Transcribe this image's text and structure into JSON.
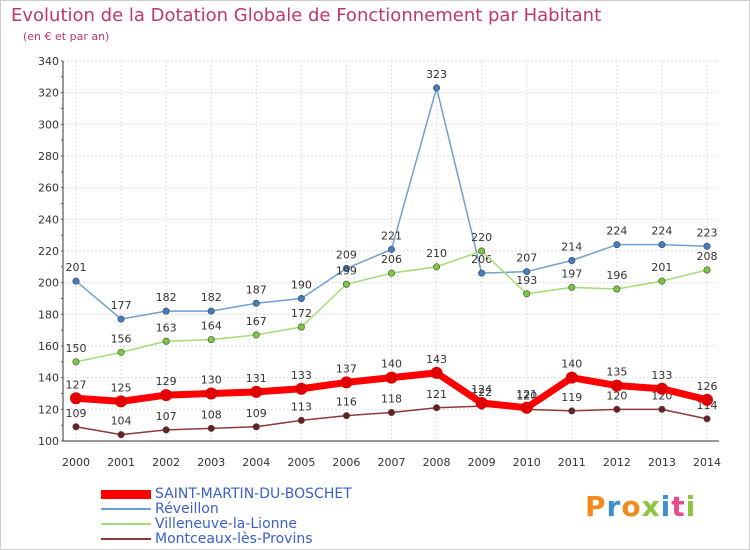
{
  "header": {
    "title": "Evolution de la Dotation Globale de Fonctionnement par Habitant",
    "subtitle": "(en € et par an)"
  },
  "logo": {
    "text": "Proxiti",
    "colors": [
      "#f28b1e",
      "#3d8fd1",
      "#f28b1e",
      "#8cc63f",
      "#3d8fd1",
      "#e94b8a",
      "#8cc63f"
    ]
  },
  "chart_data": {
    "type": "line",
    "title": "Evolution de la Dotation Globale de Fonctionnement par Habitant",
    "subtitle": "(en € et par an)",
    "xlabel": "",
    "ylabel": "",
    "ylim": [
      100,
      340
    ],
    "yticks": [
      "100",
      "120",
      "140",
      "160",
      "180",
      "200",
      "220",
      "240",
      "260",
      "280",
      "300",
      "320",
      "340"
    ],
    "grid": true,
    "legend_position": "bottom-left",
    "categories": [
      "2000",
      "2001",
      "2002",
      "2003",
      "2004",
      "2005",
      "2006",
      "2007",
      "2008",
      "2009",
      "2010",
      "2011",
      "2012",
      "2013",
      "2014"
    ],
    "series": [
      {
        "name": "Réveillon",
        "color": "#6f9fd2",
        "point_color": "#3f7fc3",
        "values": [
          201,
          177,
          182,
          182,
          187,
          190,
          209,
          221,
          323,
          206,
          207,
          214,
          224,
          224,
          223
        ],
        "labels": [
          "201",
          "177",
          "182",
          "182",
          "187",
          "190",
          "209",
          "221",
          "323",
          "206",
          "207",
          "214",
          "224",
          "224",
          "223"
        ]
      },
      {
        "name": "Villeneuve-la-Lionne",
        "color": "#a3db74",
        "point_color": "#7dc93e",
        "values": [
          150,
          156,
          163,
          164,
          167,
          172,
          199,
          206,
          210,
          220,
          193,
          197,
          196,
          201,
          208
        ],
        "labels": [
          "150",
          "156",
          "163",
          "164",
          "167",
          "172",
          "199",
          "206",
          "210",
          "220",
          "193",
          "197",
          "196",
          "201",
          "208"
        ]
      },
      {
        "name": "Montceaux-lès-Provins",
        "color": "#8c3a3a",
        "point_color": "#6b1f1f",
        "values": [
          109,
          104,
          107,
          108,
          109,
          113,
          116,
          118,
          121,
          122,
          120,
          119,
          120,
          120,
          114
        ],
        "labels": [
          "109",
          "104",
          "107",
          "108",
          "109",
          "113",
          "116",
          "118",
          "121",
          "122",
          "120",
          "119",
          "120",
          "120",
          "114"
        ]
      },
      {
        "name": "SAINT-MARTIN-DU-BOSCHET",
        "color": "#ff0000",
        "point_color": "#e00000",
        "values": [
          127,
          125,
          129,
          130,
          131,
          133,
          137,
          140,
          143,
          124,
          121,
          140,
          135,
          133,
          126
        ],
        "labels": [
          "127",
          "125",
          "129",
          "130",
          "131",
          "133",
          "137",
          "140",
          "143",
          "124",
          "121",
          "140",
          "135",
          "133",
          "126"
        ]
      }
    ],
    "legend": [
      {
        "name": "SAINT-MARTIN-DU-BOSCHET",
        "color": "#ff0000"
      },
      {
        "name": "Réveillon",
        "color": "#6f9fd2"
      },
      {
        "name": "Villeneuve-la-Lionne",
        "color": "#a3db74"
      },
      {
        "name": "Montceaux-lès-Provins",
        "color": "#8c3a3a"
      }
    ]
  }
}
